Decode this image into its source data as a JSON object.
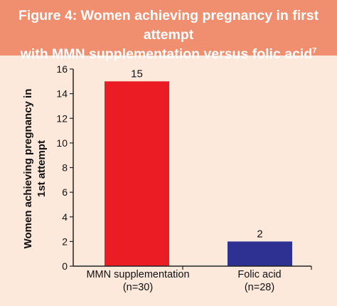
{
  "title_line1": "Figure 4: Women achieving pregnancy in first attempt",
  "title_line2": "with MMN supplementation versus folic acid",
  "title_footnote": "7",
  "colors": {
    "header": "#f08f70",
    "background": "#fde8dc",
    "bar1": "#ec1c24",
    "bar2": "#2e3192"
  },
  "chart_data": {
    "type": "bar",
    "title": "Figure 4: Women achieving pregnancy in first attempt with MMN supplementation versus folic acid",
    "ylabel_line1": "Women achieving pregnancy in",
    "ylabel_line2": "1st attempt",
    "xlabel": "",
    "ylim": [
      0,
      16
    ],
    "yticks": [
      0,
      2,
      4,
      6,
      8,
      10,
      12,
      14,
      16
    ],
    "categories": [
      {
        "line1": "MMN supplementation",
        "line2": "(n=30)"
      },
      {
        "line1": "Folic acid",
        "line2": "(n=28)"
      }
    ],
    "values": [
      15,
      2
    ],
    "data_labels": [
      "15",
      "2"
    ],
    "bar_colors": [
      "#ec1c24",
      "#2e3192"
    ],
    "grid": false,
    "legend": "none"
  }
}
